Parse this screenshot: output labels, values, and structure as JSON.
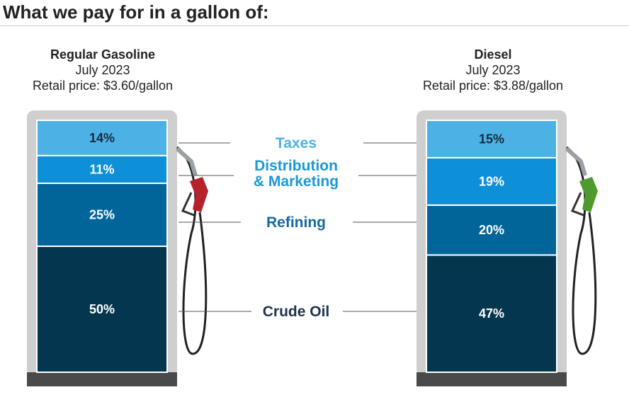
{
  "title": "What we pay for in a gallon of:",
  "chart_data": [
    {
      "type": "bar",
      "stacked": true,
      "name": "Regular Gasoline",
      "period": "July 2023",
      "price_label": "Retail price: $3.60/gallon",
      "nozzle_color": "#b5222c",
      "categories": [
        "Crude Oil",
        "Refining",
        "Distribution & Marketing",
        "Taxes"
      ],
      "values": [
        50,
        25,
        11,
        14
      ],
      "labels": [
        "50%",
        "25%",
        "11%",
        "14%"
      ]
    },
    {
      "type": "bar",
      "stacked": true,
      "name": "Diesel",
      "period": "July 2023",
      "price_label": "Retail price: $3.88/gallon",
      "nozzle_color": "#4e9a2e",
      "categories": [
        "Crude Oil",
        "Refining",
        "Distribution & Marketing",
        "Taxes"
      ],
      "values": [
        47,
        20,
        19,
        15
      ],
      "labels": [
        "47%",
        "20%",
        "19%",
        "15%"
      ]
    }
  ],
  "legend": [
    {
      "line1": "Taxes",
      "line2": "",
      "color": "#4cb2e6",
      "segment_color": "#4cb2e6"
    },
    {
      "line1": "Distribution",
      "line2": "& Marketing",
      "color": "#1c97d6",
      "segment_color": "#0e90d8"
    },
    {
      "line1": "Refining",
      "line2": "",
      "color": "#146aa0",
      "segment_color": "#02659a"
    },
    {
      "line1": "Crude Oil",
      "line2": "",
      "color": "#1d3350",
      "segment_color": "#04374f"
    }
  ],
  "label_colors": {
    "light": "#1a2a3a",
    "dark": "#ffffff"
  }
}
